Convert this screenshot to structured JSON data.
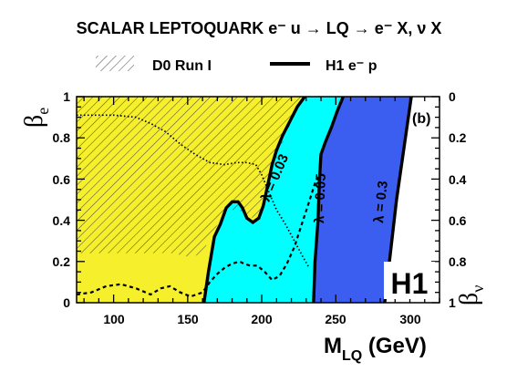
{
  "chart_data": {
    "type": "area",
    "title": "SCALAR LEPTOQUARK e⁻ u → LQ → e⁻ X, ν X",
    "panel_label": "(b)",
    "experiment_label": "H1",
    "xlabel": {
      "main": "M",
      "sub": "LQ",
      "unit": " (GeV)"
    },
    "ylabel_left": {
      "main": "β",
      "sub": "e"
    },
    "ylabel_right": {
      "main": "β",
      "sub": "ν"
    },
    "xlim": [
      75,
      320
    ],
    "ylim": [
      0,
      1
    ],
    "x_ticks": [
      100,
      150,
      200,
      250,
      300
    ],
    "y_ticks": [
      0,
      0.2,
      0.4,
      0.6,
      0.8,
      1
    ],
    "y_ticklabels": [
      "0",
      "0.2",
      "0.4",
      "0.6",
      "0.8",
      "1"
    ],
    "y2_ticklabels": [
      "1",
      "0.8",
      "0.6",
      "0.4",
      "0.2",
      "0"
    ],
    "grid": false,
    "legend_position": "top",
    "legend": [
      {
        "key": "d0",
        "label": "D0 Run I",
        "style": "hatched"
      },
      {
        "key": "h1",
        "label": "H1 e⁻ p",
        "style": "thick-line"
      }
    ],
    "colors": {
      "lambda_003": "#f5f02b",
      "lambda_005": "#00ffff",
      "lambda_03": "#3c5ef0",
      "line": "#000000",
      "hatch": "#333333"
    },
    "contours": [
      {
        "name": "λ = 0.03",
        "points": [
          [
            161,
            0
          ],
          [
            164,
            0.15
          ],
          [
            168,
            0.32
          ],
          [
            172,
            0.38
          ],
          [
            176,
            0.46
          ],
          [
            180,
            0.49
          ],
          [
            184,
            0.49
          ],
          [
            187,
            0.46
          ],
          [
            190,
            0.41
          ],
          [
            194,
            0.39
          ],
          [
            198,
            0.41
          ],
          [
            201,
            0.47
          ],
          [
            204,
            0.57
          ],
          [
            207,
            0.67
          ],
          [
            210,
            0.74
          ],
          [
            214,
            0.81
          ],
          [
            219,
            0.88
          ],
          [
            224,
            0.95
          ],
          [
            229,
            1.0
          ]
        ]
      },
      {
        "name": "λ = 0.05",
        "points": [
          [
            235,
            0
          ],
          [
            236,
            0.2
          ],
          [
            238,
            0.4
          ],
          [
            239,
            0.6
          ],
          [
            240,
            0.72
          ],
          [
            243,
            0.78
          ],
          [
            247,
            0.85
          ],
          [
            251,
            0.93
          ],
          [
            255,
            1.0
          ]
        ]
      },
      {
        "name": "λ = 0.3",
        "points": [
          [
            283,
            0
          ],
          [
            291,
            0.5
          ],
          [
            301,
            1.0
          ]
        ]
      }
    ],
    "d0_limit": {
      "name": "D0 Run I",
      "points": [
        [
          75,
          0.24
        ],
        [
          140,
          0.24
        ],
        [
          152,
          0.22
        ],
        [
          160,
          0.24
        ],
        [
          166,
          0.33
        ],
        [
          172,
          0.4
        ],
        [
          178,
          0.45
        ],
        [
          184,
          0.45
        ],
        [
          189,
          0.43
        ],
        [
          193,
          0.41
        ],
        [
          197,
          0.43
        ],
        [
          201,
          0.47
        ],
        [
          204,
          0.56
        ],
        [
          208,
          0.67
        ],
        [
          212,
          0.74
        ],
        [
          216,
          0.81
        ],
        [
          220,
          0.88
        ],
        [
          224,
          0.95
        ],
        [
          228,
          1.0
        ]
      ]
    },
    "dotted_curve": {
      "points": [
        [
          75,
          0.91
        ],
        [
          100,
          0.91
        ],
        [
          115,
          0.9
        ],
        [
          125,
          0.87
        ],
        [
          135,
          0.83
        ],
        [
          145,
          0.77
        ],
        [
          155,
          0.72
        ],
        [
          165,
          0.68
        ],
        [
          175,
          0.67
        ],
        [
          183,
          0.68
        ],
        [
          190,
          0.68
        ],
        [
          196,
          0.67
        ],
        [
          200,
          0.62
        ],
        [
          204,
          0.55
        ],
        [
          210,
          0.45
        ],
        [
          216,
          0.38
        ],
        [
          222,
          0.3
        ],
        [
          228,
          0.22
        ],
        [
          232,
          0.17
        ]
      ]
    },
    "dashed_curve": {
      "points": [
        [
          75,
          0.04
        ],
        [
          85,
          0.05
        ],
        [
          95,
          0.08
        ],
        [
          105,
          0.09
        ],
        [
          115,
          0.07
        ],
        [
          125,
          0.04
        ],
        [
          132,
          0.07
        ],
        [
          138,
          0.08
        ],
        [
          145,
          0.05
        ],
        [
          152,
          0.03
        ],
        [
          160,
          0.05
        ],
        [
          165,
          0.1
        ],
        [
          170,
          0.14
        ],
        [
          175,
          0.17
        ],
        [
          180,
          0.19
        ],
        [
          185,
          0.2
        ],
        [
          188,
          0.19
        ],
        [
          192,
          0.18
        ],
        [
          197,
          0.18
        ],
        [
          202,
          0.15
        ],
        [
          207,
          0.11
        ],
        [
          212,
          0.13
        ],
        [
          217,
          0.19
        ],
        [
          222,
          0.27
        ],
        [
          227,
          0.38
        ],
        [
          232,
          0.49
        ],
        [
          236,
          0.58
        ],
        [
          240,
          0.63
        ]
      ]
    }
  }
}
